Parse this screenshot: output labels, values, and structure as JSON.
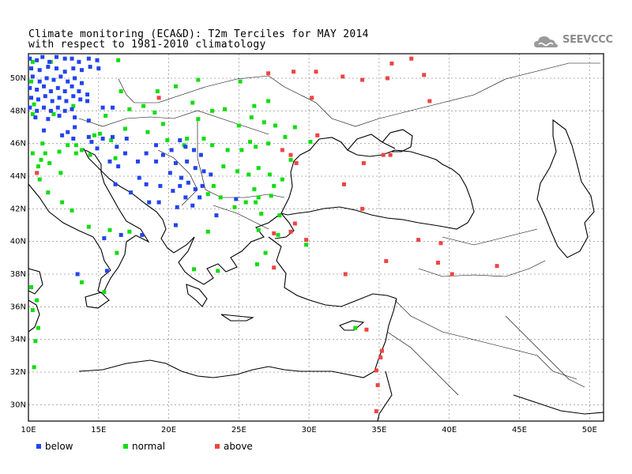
{
  "title": {
    "line1": "Climate monitoring (ECA&D): T2m Terciles for MAY 2014",
    "line2": "with respect to 1981-2010 climatology"
  },
  "logo": {
    "text": "SEEVCCC",
    "color": "#8c8c8c"
  },
  "map": {
    "lon_range": [
      10,
      51
    ],
    "lat_range": [
      29,
      51.5
    ],
    "x_ticks": [
      "10E",
      "15E",
      "20E",
      "25E",
      "30E",
      "35E",
      "40E",
      "45E",
      "50E"
    ],
    "y_ticks": [
      "30N",
      "32N",
      "34N",
      "36N",
      "38N",
      "40N",
      "42N",
      "44N",
      "46N",
      "48N",
      "50N"
    ],
    "grid": true
  },
  "legend": [
    {
      "key": "below",
      "label": "below",
      "color": "#2244ee"
    },
    {
      "key": "normal",
      "label": "normal",
      "color": "#11dd11"
    },
    {
      "key": "above",
      "label": "above",
      "color": "#ee4444"
    }
  ],
  "stations": {
    "below": [
      [
        10.1,
        51.2
      ],
      [
        10.6,
        51.1
      ],
      [
        11.0,
        51.3
      ],
      [
        11.5,
        51.0
      ],
      [
        12.0,
        51.3
      ],
      [
        12.6,
        51.2
      ],
      [
        13.1,
        51.2
      ],
      [
        13.6,
        51.0
      ],
      [
        14.3,
        51.2
      ],
      [
        14.9,
        51.1
      ],
      [
        10.2,
        50.6
      ],
      [
        10.8,
        50.5
      ],
      [
        11.4,
        50.7
      ],
      [
        12.0,
        50.6
      ],
      [
        12.6,
        50.4
      ],
      [
        13.2,
        50.6
      ],
      [
        13.8,
        50.5
      ],
      [
        14.4,
        50.7
      ],
      [
        15.0,
        50.6
      ],
      [
        10.3,
        50.1
      ],
      [
        10.8,
        49.8
      ],
      [
        11.3,
        50.0
      ],
      [
        11.8,
        49.9
      ],
      [
        12.3,
        50.1
      ],
      [
        12.8,
        49.8
      ],
      [
        13.3,
        50.0
      ],
      [
        13.8,
        49.7
      ],
      [
        10.1,
        49.4
      ],
      [
        10.6,
        49.3
      ],
      [
        11.1,
        49.5
      ],
      [
        11.6,
        49.2
      ],
      [
        12.1,
        49.4
      ],
      [
        12.6,
        49.2
      ],
      [
        13.1,
        49.5
      ],
      [
        13.6,
        49.2
      ],
      [
        14.2,
        49.0
      ],
      [
        10.2,
        48.8
      ],
      [
        10.7,
        48.7
      ],
      [
        11.2,
        48.9
      ],
      [
        11.7,
        48.6
      ],
      [
        12.2,
        48.8
      ],
      [
        12.7,
        48.6
      ],
      [
        13.2,
        48.9
      ],
      [
        13.7,
        48.7
      ],
      [
        14.2,
        48.6
      ],
      [
        10.1,
        48.2
      ],
      [
        10.6,
        48.0
      ],
      [
        11.1,
        48.2
      ],
      [
        11.6,
        48.0
      ],
      [
        12.1,
        48.2
      ],
      [
        12.6,
        48.0
      ],
      [
        13.1,
        48.1
      ],
      [
        10.5,
        47.6
      ],
      [
        11.4,
        47.5
      ],
      [
        12.2,
        47.7
      ],
      [
        13.3,
        47.6
      ],
      [
        14.3,
        47.4
      ],
      [
        15.3,
        48.2
      ],
      [
        16.0,
        48.2
      ],
      [
        11.1,
        46.8
      ],
      [
        12.4,
        46.5
      ],
      [
        13.2,
        46.3
      ],
      [
        14.5,
        46.1
      ],
      [
        15.3,
        46.3
      ],
      [
        16.0,
        46.4
      ],
      [
        16.3,
        45.8
      ],
      [
        17.0,
        46.3
      ],
      [
        14.9,
        45.7
      ],
      [
        16.9,
        45.4
      ],
      [
        15.8,
        44.9
      ],
      [
        16.4,
        44.6
      ],
      [
        17.8,
        44.9
      ],
      [
        18.4,
        45.4
      ],
      [
        19.1,
        45.9
      ],
      [
        19.6,
        45.3
      ],
      [
        20.2,
        45.6
      ],
      [
        20.8,
        46.2
      ],
      [
        21.2,
        45.8
      ],
      [
        21.8,
        45.6
      ],
      [
        22.3,
        45.3
      ],
      [
        19.1,
        44.9
      ],
      [
        20.5,
        44.8
      ],
      [
        21.3,
        44.9
      ],
      [
        21.9,
        44.5
      ],
      [
        22.5,
        44.3
      ],
      [
        23.0,
        44.1
      ],
      [
        20.1,
        44.2
      ],
      [
        20.9,
        43.9
      ],
      [
        21.4,
        43.6
      ],
      [
        21.9,
        43.2
      ],
      [
        22.4,
        43.4
      ],
      [
        17.9,
        43.9
      ],
      [
        18.4,
        43.5
      ],
      [
        19.4,
        43.4
      ],
      [
        20.3,
        43.1
      ],
      [
        20.8,
        43.4
      ],
      [
        21.2,
        42.7
      ],
      [
        21.7,
        42.2
      ],
      [
        22.2,
        42.7
      ],
      [
        16.2,
        43.5
      ],
      [
        17.3,
        43.0
      ],
      [
        18.6,
        42.4
      ],
      [
        19.3,
        42.4
      ],
      [
        20.6,
        42.1
      ],
      [
        23.4,
        41.6
      ],
      [
        20.5,
        41.0
      ],
      [
        24.8,
        42.6
      ],
      [
        16.6,
        40.4
      ],
      [
        18.1,
        40.4
      ],
      [
        15.4,
        40.2
      ],
      [
        13.5,
        38.0
      ],
      [
        15.6,
        38.2
      ],
      [
        13.3,
        47.0
      ],
      [
        14.3,
        46.4
      ],
      [
        12.8,
        46.7
      ]
    ],
    "normal": [
      [
        10.3,
        51.0
      ],
      [
        10.2,
        49.8
      ],
      [
        11.6,
        51.0
      ],
      [
        16.4,
        51.1
      ],
      [
        10.4,
        48.4
      ],
      [
        10.3,
        47.8
      ],
      [
        11.8,
        47.8
      ],
      [
        13.2,
        48.3
      ],
      [
        15.5,
        47.7
      ],
      [
        17.2,
        48.1
      ],
      [
        18.2,
        48.3
      ],
      [
        19.6,
        47.2
      ],
      [
        21.7,
        48.5
      ],
      [
        22.1,
        47.5
      ],
      [
        23.1,
        48.0
      ],
      [
        25.1,
        49.8
      ],
      [
        26.1,
        48.3
      ],
      [
        27.1,
        48.6
      ],
      [
        25.9,
        47.6
      ],
      [
        26.8,
        47.3
      ],
      [
        27.6,
        47.1
      ],
      [
        28.3,
        46.4
      ],
      [
        27.1,
        46.0
      ],
      [
        26.2,
        45.8
      ],
      [
        25.2,
        45.6
      ],
      [
        24.2,
        45.6
      ],
      [
        23.1,
        45.9
      ],
      [
        22.5,
        46.3
      ],
      [
        21.3,
        46.3
      ],
      [
        23.9,
        44.6
      ],
      [
        24.9,
        44.3
      ],
      [
        25.7,
        44.1
      ],
      [
        26.4,
        44.5
      ],
      [
        27.2,
        44.1
      ],
      [
        28.1,
        43.8
      ],
      [
        27.3,
        42.8
      ],
      [
        26.4,
        42.7
      ],
      [
        25.5,
        42.4
      ],
      [
        24.7,
        42.1
      ],
      [
        23.7,
        42.7
      ],
      [
        22.8,
        42.9
      ],
      [
        23.2,
        43.4
      ],
      [
        26.1,
        43.2
      ],
      [
        27.5,
        43.4
      ],
      [
        21.1,
        45.9
      ],
      [
        19.9,
        46.2
      ],
      [
        18.5,
        46.7
      ],
      [
        16.9,
        46.9
      ],
      [
        15.9,
        46.2
      ],
      [
        15.1,
        46.6
      ],
      [
        14.4,
        45.3
      ],
      [
        13.8,
        45.6
      ],
      [
        13.4,
        45.9
      ],
      [
        12.2,
        45.5
      ],
      [
        11.2,
        45.4
      ],
      [
        10.3,
        45.4
      ],
      [
        10.7,
        44.6
      ],
      [
        10.8,
        43.8
      ],
      [
        11.4,
        43.0
      ],
      [
        12.4,
        42.4
      ],
      [
        13.1,
        41.9
      ],
      [
        14.3,
        40.9
      ],
      [
        15.8,
        40.7
      ],
      [
        17.2,
        40.6
      ],
      [
        16.3,
        39.3
      ],
      [
        15.4,
        36.9
      ],
      [
        13.8,
        37.5
      ],
      [
        10.2,
        37.2
      ],
      [
        10.6,
        36.4
      ],
      [
        10.3,
        35.8
      ],
      [
        10.7,
        34.7
      ],
      [
        10.5,
        33.9
      ],
      [
        10.4,
        32.3
      ],
      [
        22.1,
        49.9
      ],
      [
        19.2,
        49.2
      ],
      [
        16.6,
        49.2
      ],
      [
        20.5,
        49.5
      ],
      [
        24.0,
        48.1
      ],
      [
        25.8,
        46.1
      ],
      [
        28.7,
        45.0
      ],
      [
        29.8,
        39.8
      ],
      [
        27.8,
        40.4
      ],
      [
        26.4,
        40.7
      ],
      [
        26.9,
        39.3
      ],
      [
        26.3,
        38.6
      ],
      [
        23.5,
        38.2
      ],
      [
        21.8,
        38.3
      ],
      [
        22.8,
        40.6
      ],
      [
        26.6,
        41.7
      ],
      [
        26.2,
        42.4
      ],
      [
        27.9,
        41.6
      ],
      [
        33.3,
        34.7
      ],
      [
        13.4,
        45.4
      ],
      [
        12.8,
        45.9
      ],
      [
        11.5,
        44.8
      ],
      [
        12.3,
        44.2
      ],
      [
        16.2,
        45.1
      ],
      [
        14.7,
        46.5
      ],
      [
        11.0,
        46.0
      ],
      [
        10.9,
        45.0
      ],
      [
        25.0,
        47.1
      ],
      [
        29.0,
        47.0
      ],
      [
        30.1,
        46.1
      ],
      [
        19.0,
        47.9
      ]
    ],
    "above": [
      [
        27.1,
        50.3
      ],
      [
        28.9,
        50.4
      ],
      [
        30.5,
        50.4
      ],
      [
        32.4,
        50.1
      ],
      [
        33.8,
        49.9
      ],
      [
        35.6,
        50.0
      ],
      [
        35.9,
        50.9
      ],
      [
        37.3,
        51.2
      ],
      [
        38.2,
        50.2
      ],
      [
        38.6,
        48.6
      ],
      [
        30.2,
        48.8
      ],
      [
        28.1,
        45.6
      ],
      [
        28.7,
        45.3
      ],
      [
        29.1,
        44.8
      ],
      [
        30.6,
        46.5
      ],
      [
        33.9,
        44.8
      ],
      [
        35.3,
        45.3
      ],
      [
        33.8,
        42.0
      ],
      [
        29.0,
        41.1
      ],
      [
        27.5,
        40.5
      ],
      [
        28.7,
        40.6
      ],
      [
        29.8,
        40.1
      ],
      [
        32.6,
        38.0
      ],
      [
        35.5,
        38.8
      ],
      [
        37.8,
        40.1
      ],
      [
        39.2,
        38.7
      ],
      [
        40.2,
        38.0
      ],
      [
        43.4,
        38.5
      ],
      [
        39.4,
        39.9
      ],
      [
        19.3,
        48.8
      ],
      [
        27.5,
        38.4
      ],
      [
        34.8,
        32.1
      ],
      [
        34.9,
        31.2
      ],
      [
        35.1,
        32.9
      ],
      [
        35.2,
        33.3
      ],
      [
        34.8,
        29.6
      ],
      [
        34.1,
        34.6
      ],
      [
        10.6,
        44.2
      ],
      [
        35.8,
        45.3
      ],
      [
        32.5,
        43.5
      ]
    ]
  }
}
